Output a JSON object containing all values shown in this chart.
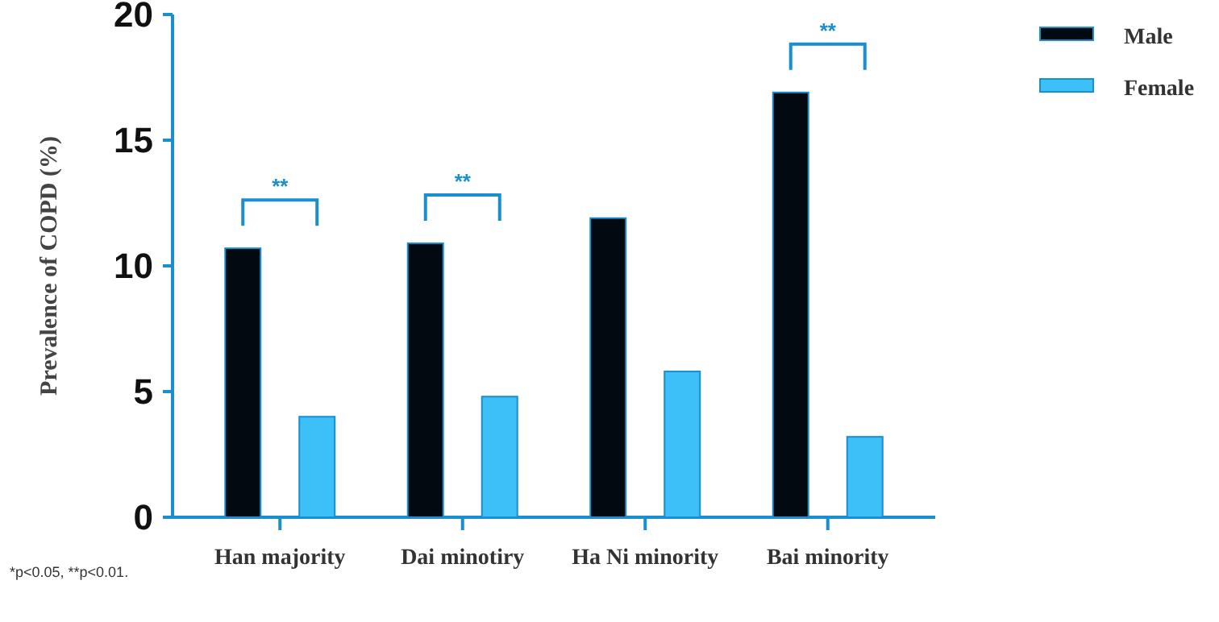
{
  "chart_data": {
    "type": "bar",
    "ylabel": "Prevalence of COPD (%)",
    "categories": [
      "Han majority",
      "Dai minotiry",
      "Ha Ni minority",
      "Bai minority"
    ],
    "series": [
      {
        "name": "Male",
        "color": "#030a0f",
        "values": [
          10.7,
          10.9,
          11.9,
          16.9
        ]
      },
      {
        "name": "Female",
        "color": "#3dbff8",
        "values": [
          4.0,
          4.8,
          5.8,
          3.2
        ]
      }
    ],
    "ylim": [
      0,
      20
    ],
    "yticks": [
      0,
      5,
      10,
      15,
      20
    ],
    "grid": false,
    "legend": "top right",
    "annotations": [
      "**",
      "**",
      "**",
      "*p<0.05, **p<0.01."
    ]
  }
}
